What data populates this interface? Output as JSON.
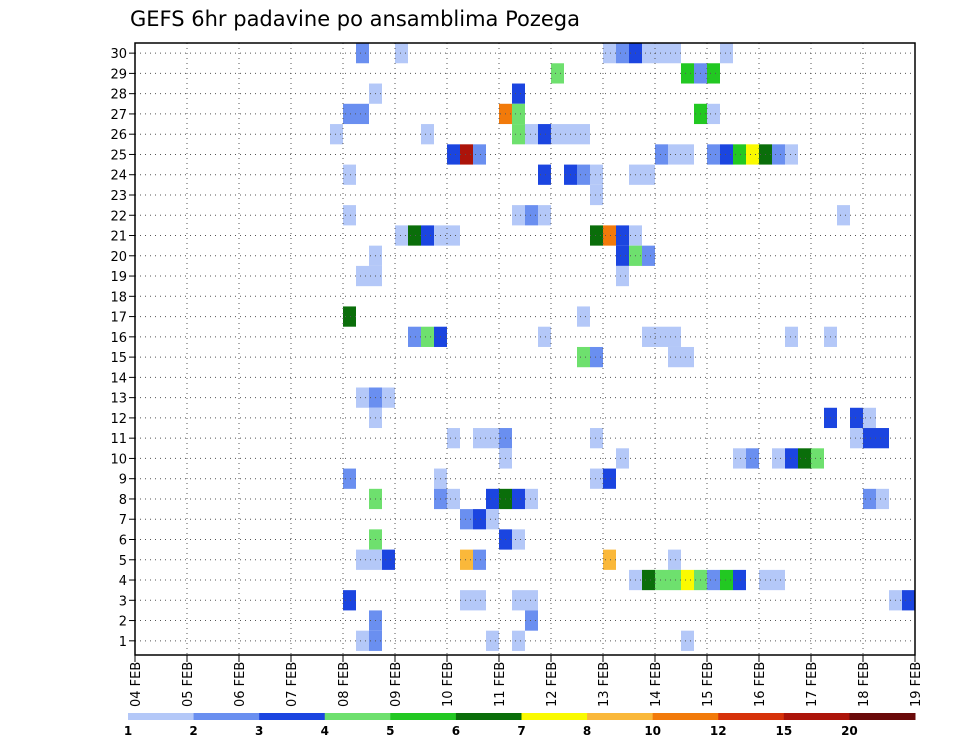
{
  "chart_data": {
    "type": "heatmap",
    "title": "GEFS 6hr padavine po ansamblima Pozega",
    "xlabel": "",
    "ylabel": "",
    "x_ticks": [
      "04 FEB",
      "05 FEB",
      "06 FEB",
      "07 FEB",
      "08 FEB",
      "09 FEB",
      "10 FEB",
      "11 FEB",
      "12 FEB",
      "13 FEB",
      "14 FEB",
      "15 FEB",
      "16 FEB",
      "17 FEB",
      "18 FEB",
      "19 FEB"
    ],
    "y_ticks": [
      "1",
      "2",
      "3",
      "4",
      "5",
      "6",
      "7",
      "8",
      "9",
      "10",
      "11",
      "12",
      "13",
      "14",
      "15",
      "16",
      "17",
      "18",
      "19",
      "20",
      "21",
      "22",
      "23",
      "24",
      "25",
      "26",
      "27",
      "28",
      "29",
      "30"
    ],
    "xlim_steps": [
      0,
      60
    ],
    "ylim": [
      0,
      30
    ],
    "grid": true,
    "colorbar": {
      "labels": [
        "1",
        "2",
        "3",
        "4",
        "5",
        "6",
        "7",
        "8",
        "10",
        "12",
        "15",
        "20"
      ],
      "colors": [
        "#b4c8f8",
        "#6a8ff0",
        "#1b45e0",
        "#6ee06e",
        "#22c822",
        "#0a6e0a",
        "#fafa00",
        "#fab83a",
        "#f27a0a",
        "#d6320a",
        "#ac140a",
        "#6a0a0a"
      ]
    },
    "cells": [
      [
        17,
        30,
        2
      ],
      [
        20,
        30,
        1
      ],
      [
        36,
        30,
        1
      ],
      [
        37,
        30,
        2
      ],
      [
        38,
        30,
        3
      ],
      [
        39,
        30,
        1
      ],
      [
        40,
        30,
        1
      ],
      [
        41,
        30,
        1
      ],
      [
        45,
        30,
        1
      ],
      [
        32,
        29,
        4
      ],
      [
        42,
        29,
        5
      ],
      [
        43,
        29,
        2
      ],
      [
        44,
        29,
        5
      ],
      [
        18,
        28,
        1
      ],
      [
        29,
        28,
        3
      ],
      [
        16,
        27,
        2
      ],
      [
        17,
        27,
        2
      ],
      [
        28,
        27,
        9
      ],
      [
        29,
        27,
        4
      ],
      [
        43,
        27,
        5
      ],
      [
        44,
        27,
        1
      ],
      [
        15,
        26,
        1
      ],
      [
        22,
        26,
        1
      ],
      [
        29,
        26,
        4
      ],
      [
        30,
        26,
        1
      ],
      [
        31,
        26,
        3
      ],
      [
        32,
        26,
        1
      ],
      [
        33,
        26,
        1
      ],
      [
        34,
        26,
        1
      ],
      [
        24,
        25,
        3
      ],
      [
        25,
        25,
        11
      ],
      [
        26,
        25,
        2
      ],
      [
        40,
        25,
        2
      ],
      [
        41,
        25,
        1
      ],
      [
        42,
        25,
        1
      ],
      [
        44,
        25,
        2
      ],
      [
        45,
        25,
        3
      ],
      [
        46,
        25,
        5
      ],
      [
        47,
        25,
        7
      ],
      [
        48,
        25,
        6
      ],
      [
        49,
        25,
        2
      ],
      [
        50,
        25,
        1
      ],
      [
        16,
        24,
        1
      ],
      [
        31,
        24,
        3
      ],
      [
        33,
        24,
        3
      ],
      [
        34,
        24,
        2
      ],
      [
        35,
        24,
        1
      ],
      [
        38,
        24,
        1
      ],
      [
        39,
        24,
        1
      ],
      [
        35,
        23,
        1
      ],
      [
        16,
        22,
        1
      ],
      [
        29,
        22,
        1
      ],
      [
        30,
        22,
        2
      ],
      [
        31,
        22,
        1
      ],
      [
        54,
        22,
        1
      ],
      [
        20,
        21,
        1
      ],
      [
        21,
        21,
        6
      ],
      [
        22,
        21,
        3
      ],
      [
        23,
        21,
        1
      ],
      [
        24,
        21,
        1
      ],
      [
        35,
        21,
        6
      ],
      [
        36,
        21,
        9
      ],
      [
        37,
        21,
        3
      ],
      [
        38,
        21,
        1
      ],
      [
        18,
        20,
        1
      ],
      [
        37,
        20,
        3
      ],
      [
        38,
        20,
        4
      ],
      [
        39,
        20,
        2
      ],
      [
        17,
        19,
        1
      ],
      [
        18,
        19,
        1
      ],
      [
        37,
        19,
        1
      ],
      [
        16,
        17,
        6
      ],
      [
        34,
        17,
        1
      ],
      [
        21,
        16,
        2
      ],
      [
        22,
        16,
        4
      ],
      [
        23,
        16,
        3
      ],
      [
        31,
        16,
        1
      ],
      [
        39,
        16,
        1
      ],
      [
        40,
        16,
        1
      ],
      [
        41,
        16,
        1
      ],
      [
        50,
        16,
        1
      ],
      [
        53,
        16,
        1
      ],
      [
        34,
        15,
        4
      ],
      [
        35,
        15,
        2
      ],
      [
        41,
        15,
        1
      ],
      [
        42,
        15,
        1
      ],
      [
        17,
        13,
        1
      ],
      [
        18,
        13,
        2
      ],
      [
        19,
        13,
        1
      ],
      [
        53,
        12,
        3
      ],
      [
        55,
        12,
        3
      ],
      [
        56,
        12,
        1
      ],
      [
        18,
        12,
        1
      ],
      [
        24,
        11,
        1
      ],
      [
        26,
        11,
        1
      ],
      [
        27,
        11,
        1
      ],
      [
        28,
        11,
        2
      ],
      [
        35,
        11,
        1
      ],
      [
        55,
        11,
        1
      ],
      [
        56,
        11,
        3
      ],
      [
        57,
        11,
        3
      ],
      [
        28,
        10,
        1
      ],
      [
        37,
        10,
        1
      ],
      [
        46,
        10,
        1
      ],
      [
        47,
        10,
        2
      ],
      [
        49,
        10,
        1
      ],
      [
        50,
        10,
        3
      ],
      [
        51,
        10,
        6
      ],
      [
        52,
        10,
        4
      ],
      [
        16,
        9,
        2
      ],
      [
        23,
        9,
        1
      ],
      [
        35,
        9,
        1
      ],
      [
        36,
        9,
        3
      ],
      [
        18,
        8,
        4
      ],
      [
        23,
        8,
        2
      ],
      [
        24,
        8,
        1
      ],
      [
        27,
        8,
        3
      ],
      [
        28,
        8,
        6
      ],
      [
        29,
        8,
        3
      ],
      [
        30,
        8,
        1
      ],
      [
        56,
        8,
        2
      ],
      [
        57,
        8,
        1
      ],
      [
        25,
        7,
        2
      ],
      [
        26,
        7,
        3
      ],
      [
        27,
        7,
        1
      ],
      [
        18,
        6,
        4
      ],
      [
        28,
        6,
        3
      ],
      [
        29,
        6,
        1
      ],
      [
        17,
        5,
        1
      ],
      [
        18,
        5,
        1
      ],
      [
        19,
        5,
        3
      ],
      [
        25,
        5,
        8
      ],
      [
        26,
        5,
        2
      ],
      [
        36,
        5,
        8
      ],
      [
        41,
        5,
        1
      ],
      [
        38,
        4,
        1
      ],
      [
        39,
        4,
        6
      ],
      [
        40,
        4,
        4
      ],
      [
        41,
        4,
        4
      ],
      [
        42,
        4,
        7
      ],
      [
        43,
        4,
        4
      ],
      [
        44,
        4,
        2
      ],
      [
        45,
        4,
        5
      ],
      [
        46,
        4,
        3
      ],
      [
        48,
        4,
        1
      ],
      [
        49,
        4,
        1
      ],
      [
        16,
        3,
        3
      ],
      [
        25,
        3,
        1
      ],
      [
        26,
        3,
        1
      ],
      [
        29,
        3,
        1
      ],
      [
        30,
        3,
        1
      ],
      [
        58,
        3,
        1
      ],
      [
        59,
        3,
        3
      ],
      [
        18,
        2,
        2
      ],
      [
        30,
        2,
        2
      ],
      [
        17,
        1,
        1
      ],
      [
        18,
        1,
        2
      ],
      [
        27,
        1,
        1
      ],
      [
        29,
        1,
        1
      ],
      [
        42,
        1,
        1
      ]
    ]
  }
}
